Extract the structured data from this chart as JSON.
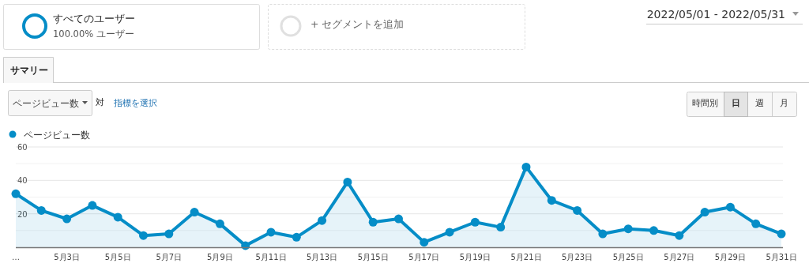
{
  "chart_data": {
    "type": "area",
    "categories": [
      "…",
      null,
      "5月3日",
      null,
      "5月5日",
      null,
      "5月7日",
      null,
      "5月9日",
      null,
      "5月11日",
      null,
      "5月13日",
      null,
      "5月15日",
      null,
      "5月17日",
      null,
      "5月19日",
      null,
      "5月21日",
      null,
      "5月23日",
      null,
      "5月25日",
      null,
      "5月27日",
      null,
      "5月29日",
      null,
      "5月31日"
    ],
    "series": [
      {
        "name": "ページビュー数",
        "color": "#058dc7",
        "values": [
          32,
          22,
          17,
          25,
          18,
          7,
          8,
          21,
          14,
          1,
          9,
          6,
          16,
          39,
          15,
          17,
          3,
          9,
          15,
          12,
          48,
          28,
          22,
          8,
          11,
          10,
          7,
          21,
          24,
          14,
          8
        ]
      }
    ],
    "ylim": [
      0,
      60
    ],
    "yticks": [
      {
        "value": 0,
        "label": null
      },
      {
        "value": 10,
        "label": null
      },
      20,
      {
        "value": 30,
        "label": null
      },
      40,
      {
        "value": 50,
        "label": null
      },
      60
    ],
    "grid": "y",
    "legend": "top left",
    "marker": "circle",
    "annotations": [
      "すべてのユーザー",
      "100.00% ユーザー",
      "+ セグメントを追加",
      "2022/05/01 - 2022/05/31",
      "サマリー",
      "ページビュー数",
      "対",
      "指標を選択",
      "時間別",
      "日",
      "週",
      "月"
    ]
  }
}
